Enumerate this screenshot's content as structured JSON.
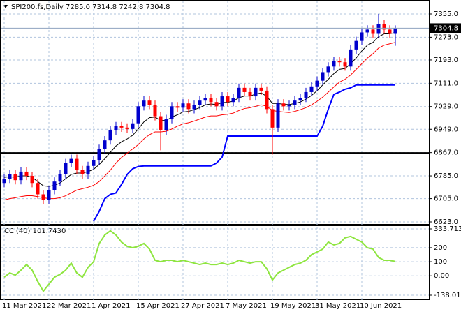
{
  "chart_data": [
    {
      "type": "candlestick",
      "title": "SPI200.fs,Daily  7285.0 7314.8 7242.8 7304.8",
      "categories": [
        "11 Mar 2021",
        null,
        null,
        null,
        null,
        null,
        null,
        null,
        "22 Mar 2021",
        null,
        null,
        null,
        null,
        null,
        null,
        null,
        "1 Apr 2021",
        null,
        null,
        null,
        null,
        null,
        null,
        null,
        "15 Apr 2021",
        null,
        null,
        null,
        null,
        null,
        null,
        null,
        "27 Apr 2021",
        null,
        null,
        null,
        null,
        null,
        null,
        null,
        "7 May 2021",
        null,
        null,
        null,
        null,
        null,
        null,
        null,
        "19 May 2021",
        null,
        null,
        null,
        null,
        null,
        null,
        null,
        "31 May 2021",
        null,
        null,
        null,
        null,
        null,
        null,
        null,
        "10 Jun 2021",
        null,
        null,
        null,
        null,
        null,
        null
      ],
      "open": [
        6760,
        6775,
        6790,
        6770,
        6800,
        6785,
        6760,
        6720,
        6700,
        6735,
        6765,
        6790,
        6830,
        6845,
        6805,
        6790,
        6820,
        6840,
        6880,
        6910,
        6945,
        6960,
        6955,
        6950,
        6970,
        7030,
        7050,
        7035,
        6995,
        6945,
        6985,
        7030,
        7025,
        7040,
        7020,
        7035,
        7050,
        7060,
        7045,
        7030,
        7065,
        7045,
        7060,
        7095,
        7080,
        7065,
        7095,
        7085,
        7020,
        6955,
        7040,
        7030,
        7035,
        7050,
        7060,
        7080,
        7100,
        7120,
        7150,
        7170,
        7190,
        7185,
        7170,
        7230,
        7260,
        7290,
        7300,
        7285,
        7320,
        7300,
        7285
      ],
      "high": [
        6790,
        6805,
        6805,
        6815,
        6815,
        6800,
        6775,
        6735,
        6750,
        6780,
        6805,
        6845,
        6860,
        6860,
        6820,
        6835,
        6855,
        6895,
        6925,
        6960,
        6975,
        6975,
        6970,
        6985,
        7045,
        7065,
        7065,
        7050,
        7010,
        7000,
        7045,
        7045,
        7055,
        7055,
        7050,
        7065,
        7075,
        7075,
        7060,
        7080,
        7080,
        7075,
        7110,
        7110,
        7095,
        7110,
        7110,
        7100,
        7035,
        7055,
        7055,
        7050,
        7065,
        7075,
        7095,
        7115,
        7135,
        7165,
        7185,
        7205,
        7205,
        7200,
        7245,
        7275,
        7305,
        7315,
        7315,
        7355,
        7335,
        7315,
        7314.8
      ],
      "low": [
        6745,
        6760,
        6755,
        6755,
        6770,
        6745,
        6705,
        6685,
        6685,
        6720,
        6750,
        6775,
        6815,
        6790,
        6775,
        6775,
        6805,
        6825,
        6865,
        6895,
        6930,
        6940,
        6935,
        6935,
        6955,
        7015,
        7020,
        6980,
        6875,
        6930,
        6970,
        7010,
        7010,
        7005,
        7005,
        7020,
        7035,
        7030,
        7015,
        7015,
        7030,
        7030,
        7045,
        7065,
        7050,
        7050,
        7070,
        7005,
        6860,
        6940,
        7015,
        7015,
        7020,
        7035,
        7045,
        7065,
        7085,
        7105,
        7135,
        7155,
        7170,
        7155,
        7155,
        7215,
        7245,
        7275,
        7270,
        7270,
        7285,
        7270,
        7242.8
      ],
      "close": [
        6775,
        6790,
        6770,
        6800,
        6785,
        6760,
        6720,
        6700,
        6735,
        6765,
        6790,
        6830,
        6845,
        6805,
        6790,
        6820,
        6840,
        6880,
        6910,
        6945,
        6960,
        6955,
        6950,
        6970,
        7030,
        7050,
        7035,
        6995,
        6945,
        6985,
        7030,
        7025,
        7040,
        7020,
        7035,
        7050,
        7060,
        7045,
        7030,
        7065,
        7045,
        7060,
        7095,
        7080,
        7065,
        7095,
        7085,
        7020,
        6955,
        7040,
        7030,
        7035,
        7050,
        7060,
        7080,
        7100,
        7120,
        7150,
        7170,
        7190,
        7185,
        7170,
        7230,
        7260,
        7290,
        7300,
        7285,
        7320,
        7300,
        7285,
        7304.8
      ],
      "up_color": "#0000cd",
      "down_color": "#ff0000",
      "lines": [
        {
          "color": "#000000",
          "values": [
            6780,
            6782,
            6780,
            6785,
            6785,
            6780,
            6765,
            6750,
            6748,
            6752,
            6760,
            6775,
            6790,
            6795,
            6795,
            6800,
            6808,
            6825,
            6845,
            6868,
            6890,
            6905,
            6915,
            6928,
            6950,
            6975,
            6990,
            6992,
            6980,
            6980,
            6992,
            7000,
            7010,
            7012,
            7018,
            7025,
            7035,
            7038,
            7036,
            7043,
            7044,
            7048,
            7060,
            7066,
            7066,
            7073,
            7077,
            7065,
            7040,
            7040,
            7037,
            7036,
            7040,
            7045,
            7055,
            7068,
            7085,
            7105,
            7125,
            7145,
            7160,
            7163,
            7180,
            7200,
            7225,
            7245,
            7255,
            7275,
            7285,
            7285,
            7290
          ]
        },
        {
          "color": "#ff0000",
          "values": [
            6700,
            6705,
            6708,
            6712,
            6715,
            6715,
            6712,
            6708,
            6705,
            6705,
            6708,
            6715,
            6725,
            6735,
            6740,
            6745,
            6752,
            6765,
            6785,
            6805,
            6830,
            6850,
            6865,
            6880,
            6895,
            6915,
            6930,
            6940,
            6940,
            6942,
            6950,
            6960,
            6968,
            6972,
            6978,
            6985,
            6992,
            6996,
            6996,
            7000,
            7002,
            7006,
            7015,
            7022,
            7025,
            7030,
            7035,
            7030,
            7015,
            7012,
            7010,
            7008,
            7012,
            7018,
            7025,
            7035,
            7048,
            7062,
            7080,
            7098,
            7115,
            7125,
            7140,
            7160,
            7180,
            7200,
            7215,
            7235,
            7245,
            7250,
            7255
          ]
        },
        {
          "color": "#0000ff",
          "values": [
            null,
            null,
            null,
            null,
            null,
            null,
            null,
            null,
            null,
            null,
            null,
            null,
            null,
            null,
            null,
            null,
            6625,
            6660,
            6705,
            6720,
            6725,
            6755,
            6790,
            6810,
            6818,
            6820,
            6820,
            6820,
            6820,
            6820,
            6820,
            6820,
            6820,
            6820,
            6820,
            6820,
            6820,
            6820,
            6830,
            6851,
            6925,
            6925,
            6925,
            6925,
            6925,
            6925,
            6925,
            6925,
            6925,
            6925,
            6925,
            6925,
            6925,
            6925,
            6925,
            6925,
            6925,
            6960,
            7020,
            7072,
            7080,
            7090,
            7095,
            7105,
            7105,
            7105,
            7105,
            7105,
            7105,
            7105,
            7105
          ]
        }
      ],
      "hline": {
        "value": 6866,
        "color": "#000000"
      },
      "ylim": [
        6623,
        7355
      ],
      "yticks": [
        {
          "value": 7355,
          "label": "7355.0"
        },
        {
          "value": 7273,
          "label": "7273.0"
        },
        {
          "value": 7193,
          "label": "7193.0"
        },
        {
          "value": 7111,
          "label": "7111.0"
        },
        {
          "value": 7029,
          "label": "7029.0"
        },
        {
          "value": 6949,
          "label": "6949.0"
        },
        {
          "value": 6867,
          "label": "6867.0"
        },
        {
          "value": 6785,
          "label": "6785.0"
        },
        {
          "value": 6705,
          "label": "6705.0"
        },
        {
          "value": 6623,
          "label": "6623.0"
        }
      ],
      "grid": true
    },
    {
      "type": "line",
      "title": "CCI(40) 101.7430",
      "color": "#8ee53f",
      "values": [
        -10,
        20,
        5,
        40,
        80,
        40,
        -40,
        -110,
        -60,
        -10,
        10,
        40,
        90,
        20,
        -10,
        60,
        100,
        230,
        290,
        320,
        290,
        240,
        210,
        200,
        210,
        230,
        190,
        110,
        100,
        110,
        110,
        100,
        110,
        100,
        90,
        80,
        90,
        80,
        80,
        90,
        80,
        90,
        110,
        100,
        90,
        100,
        100,
        50,
        -30,
        20,
        40,
        60,
        80,
        90,
        110,
        150,
        170,
        190,
        240,
        220,
        230,
        270,
        280,
        260,
        240,
        200,
        190,
        130,
        110,
        110,
        101.743
      ],
      "ylim": [
        -138.0124,
        333.7135
      ],
      "yticks": [
        333.7135,
        200,
        100,
        {
          "value": 0,
          "label": "0.00"
        },
        -138.0124
      ],
      "grid": true
    }
  ]
}
